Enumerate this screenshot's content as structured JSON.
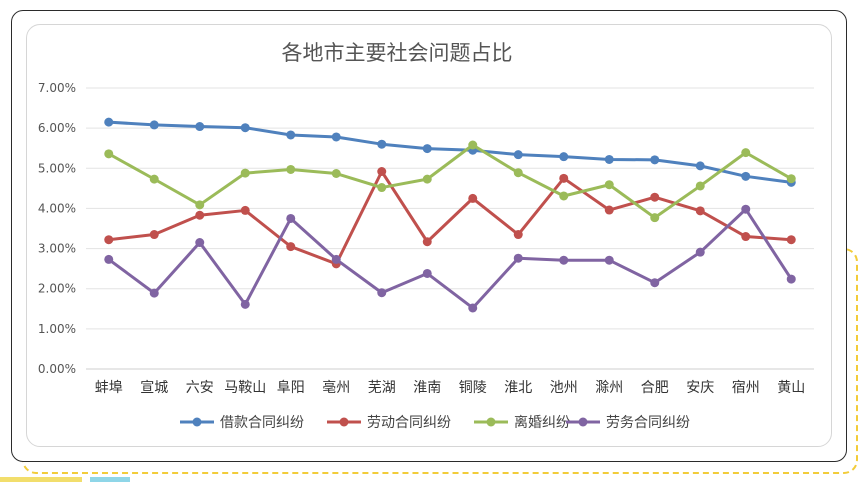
{
  "chart_data": {
    "type": "line",
    "title": "各地市主要社会问题占比",
    "xlabel": "",
    "ylabel": "",
    "categories": [
      "蚌埠",
      "宣城",
      "六安",
      "马鞍山",
      "阜阳",
      "亳州",
      "芜湖",
      "淮南",
      "铜陵",
      "淮北",
      "池州",
      "滁州",
      "合肥",
      "安庆",
      "宿州",
      "黄山"
    ],
    "ylim": [
      0,
      7
    ],
    "yticks": [
      "0.00%",
      "1.00%",
      "2.00%",
      "3.00%",
      "4.00%",
      "5.00%",
      "6.00%",
      "7.00%"
    ],
    "grid": true,
    "legend": "bottom",
    "series": [
      {
        "name": "借款合同纠纷",
        "color": "#4f81bd",
        "values": [
          6.15,
          6.08,
          6.04,
          6.01,
          5.83,
          5.78,
          5.6,
          5.49,
          5.45,
          5.34,
          5.29,
          5.22,
          5.21,
          5.06,
          4.8,
          4.65
        ]
      },
      {
        "name": "劳动合同纠纷",
        "color": "#c0504d",
        "values": [
          3.22,
          3.35,
          3.83,
          3.95,
          3.05,
          2.62,
          4.92,
          3.17,
          4.25,
          3.35,
          4.75,
          3.96,
          4.28,
          3.94,
          3.3,
          3.22
        ]
      },
      {
        "name": "离婚纠纷",
        "color": "#9bbb59",
        "values": [
          5.36,
          4.73,
          4.09,
          4.88,
          4.97,
          4.87,
          4.52,
          4.73,
          5.58,
          4.89,
          4.31,
          4.59,
          3.77,
          4.56,
          5.39,
          4.74
        ]
      },
      {
        "name": "劳务合同纠纷",
        "color": "#8064a2",
        "values": [
          2.73,
          1.89,
          3.15,
          1.61,
          3.75,
          2.73,
          1.9,
          2.38,
          1.52,
          2.76,
          2.71,
          2.71,
          2.15,
          2.91,
          3.98,
          2.24
        ]
      }
    ]
  }
}
